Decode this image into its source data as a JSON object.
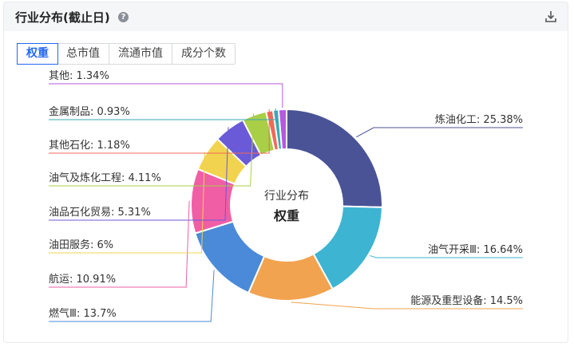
{
  "header": {
    "title": "行业分布(截止日)",
    "help_icon": "?"
  },
  "tabs": [
    {
      "label": "权重",
      "active": true
    },
    {
      "label": "总市值",
      "active": false
    },
    {
      "label": "流通市值",
      "active": false
    },
    {
      "label": "成分个数",
      "active": false
    }
  ],
  "center": {
    "title": "行业分布",
    "metric": "权重"
  },
  "chart_data": {
    "type": "pie",
    "donut": true,
    "series": [
      {
        "name": "炼油化工",
        "value": 25.38,
        "label": "炼油化工: 25.38%",
        "color": "#4a5396"
      },
      {
        "name": "油气开采Ⅲ",
        "value": 16.64,
        "label": "油气开采Ⅲ: 16.64%",
        "color": "#3db4d2"
      },
      {
        "name": "能源及重型设备",
        "value": 14.5,
        "label": "能源及重型设备: 14.5%",
        "color": "#f2a34f"
      },
      {
        "name": "燃气Ⅲ",
        "value": 13.7,
        "label": "燃气Ⅲ: 13.7%",
        "color": "#4a8ad8"
      },
      {
        "name": "航运",
        "value": 10.91,
        "label": "航运: 10.91%",
        "color": "#f05ea6"
      },
      {
        "name": "油田服务",
        "value": 6,
        "label": "油田服务: 6%",
        "color": "#f2d34f"
      },
      {
        "name": "油品石化贸易",
        "value": 5.31,
        "label": "油品石化贸易: 5.31%",
        "color": "#6a5ad8"
      },
      {
        "name": "油气及炼化工程",
        "value": 4.11,
        "label": "油气及炼化工程: 4.11%",
        "color": "#a8cf45"
      },
      {
        "name": "其他石化",
        "value": 1.18,
        "label": "其他石化: 1.18%",
        "color": "#ef6a5a"
      },
      {
        "name": "金属制品",
        "value": 0.93,
        "label": "金属制品: 0.93%",
        "color": "#3aa9b6"
      },
      {
        "name": "其他",
        "value": 1.34,
        "label": "其他: 1.34%",
        "color": "#b459e0"
      }
    ]
  }
}
